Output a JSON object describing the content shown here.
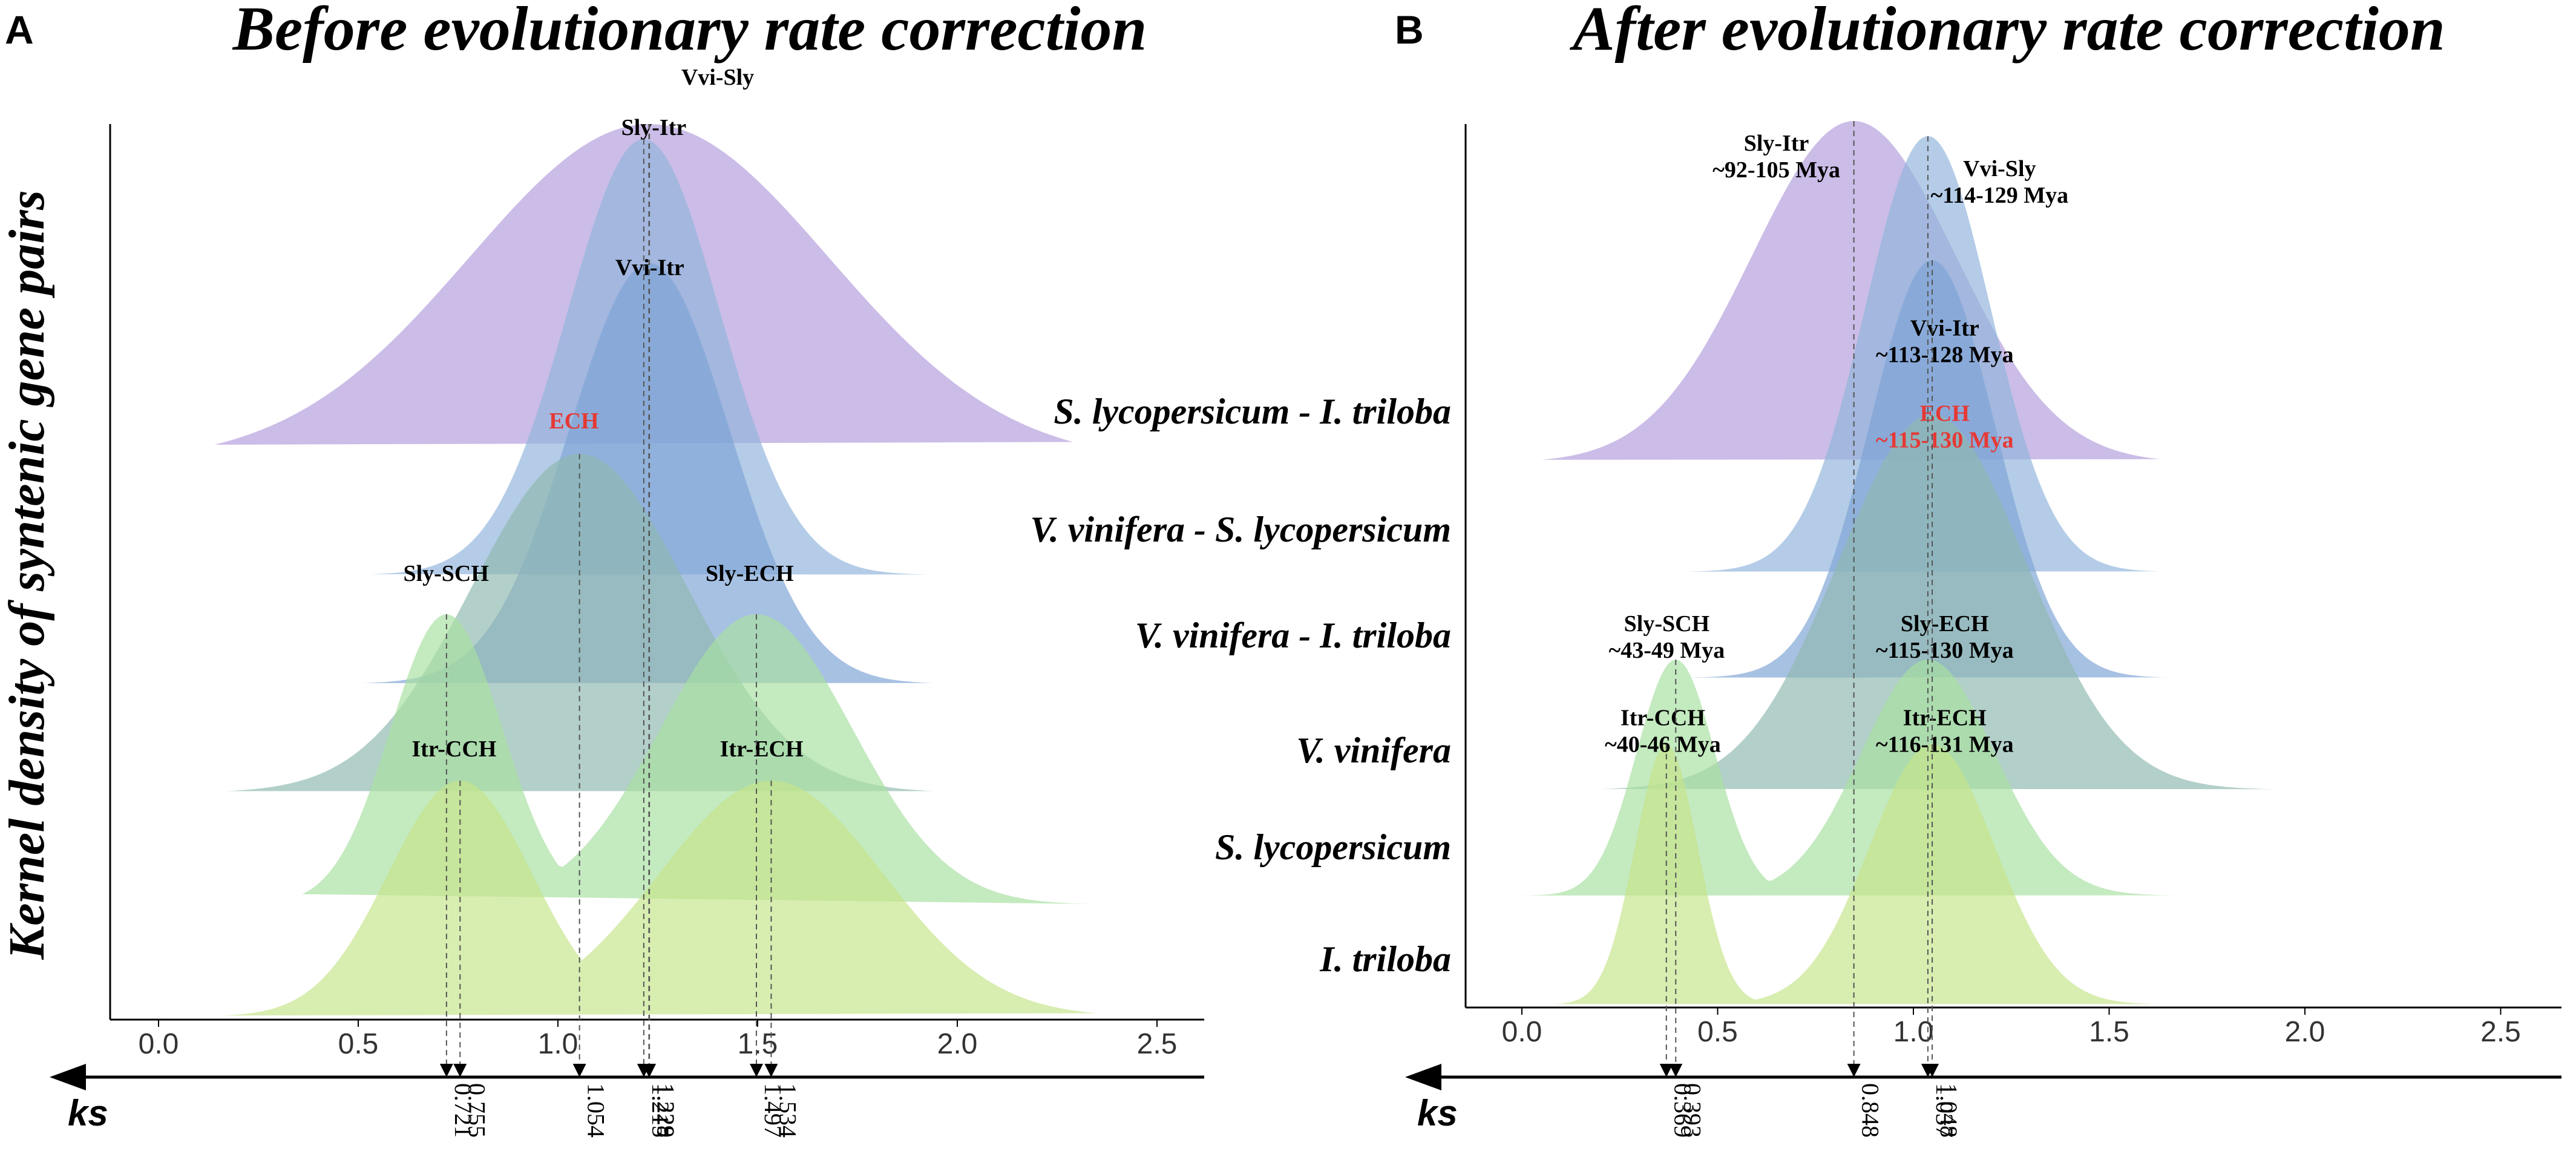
{
  "ylabel": "Kernel density of syntenic gene pairs",
  "axis_caption": "ks",
  "row_labels": [
    "S. lycopersicum - I. triloba",
    "V. vinifera - S. lycopersicum",
    "V. vinifera - I. triloba",
    "V. vinifera",
    "S. lycopersicum",
    "I. triloba"
  ],
  "colors": {
    "purple": "#b39ddb",
    "blue": "#90b4db",
    "blue_dark": "#7ea3d6",
    "teal": "#8fb8b0",
    "green": "#a8e0a0",
    "yellow_green": "#c6e58a",
    "red": "#e53935"
  },
  "chart_data": [
    {
      "type": "area",
      "panel_letter": "A",
      "title": "Before evolutionary rate correction",
      "xlabel": "ks",
      "xlim": [
        -0.12,
        2.62
      ],
      "x_ticks": [
        "0.0",
        "0.5",
        "1.0",
        "1.5",
        "2.0",
        "2.5"
      ],
      "series": [
        {
          "name": "Sly-Itr",
          "row": "S. lycopersicum - I. triloba",
          "peak": 1.228,
          "sd": 0.45,
          "range": [
            0.14,
            2.29
          ],
          "color": "purple",
          "label_x": 1.24,
          "label_level": 0.94
        },
        {
          "name": "Vvi-Sly",
          "row": "V. vinifera - S. lycopersicum",
          "peak": 1.215,
          "sd": 0.19,
          "range": [
            0.53,
            1.93
          ],
          "color": "blue",
          "label_x": 1.4,
          "label_level": 1.12
        },
        {
          "name": "Vvi-Itr",
          "row": "V. vinifera - I. triloba",
          "peak": 1.229,
          "sd": 0.2,
          "range": [
            0.51,
            1.94
          ],
          "color": "blue_dark",
          "label_x": 1.23,
          "label_level": 0.95
        },
        {
          "name": "ECH",
          "row": "V. vinifera",
          "peak": 1.054,
          "sd": 0.27,
          "range": [
            0.17,
            1.94
          ],
          "color": "teal",
          "label_x": 1.04,
          "label_level": 1.06,
          "highlight": true
        },
        {
          "name": "Sly-SCH",
          "row": "S. lycopersicum",
          "peak": 0.721,
          "sd": 0.14,
          "range": [
            0.36,
            2.35
          ],
          "color": "green",
          "label_x": 0.72,
          "label_level": 1.1,
          "secondary_name": "Sly-ECH",
          "secondary_peak": 1.497,
          "secondary_sd": 0.24,
          "secondary_label_x": 1.48
        },
        {
          "name": "Itr-CCH",
          "row": "I. triloba",
          "peak": 0.755,
          "sd": 0.18,
          "range": [
            0.16,
            2.35
          ],
          "color": "yellow_green",
          "label_x": 0.74,
          "label_level": 1.08,
          "secondary_name": "Itr-ECH",
          "secondary_peak": 1.534,
          "secondary_sd": 0.28,
          "secondary_label_x": 1.51
        }
      ],
      "peaks": [
        "0.721",
        "0.755",
        "1.054",
        "1.215",
        "1.228",
        "1.229",
        "1.497",
        "1.534"
      ]
    },
    {
      "type": "area",
      "panel_letter": "B",
      "title": "After evolutionary rate correction",
      "xlabel": "ks",
      "xlim": [
        -0.08,
        2.62
      ],
      "x_ticks": [
        "0.0",
        "0.5",
        "1.0",
        "1.5",
        "2.0",
        "2.5"
      ],
      "series": [
        {
          "name": "Sly-Itr",
          "sublabel": "~92-105 Mya",
          "row": "S. lycopersicum - I. triloba",
          "peak": 0.848,
          "sd": 0.26,
          "range": [
            0.05,
            1.63
          ],
          "color": "purple",
          "label_x": 0.65,
          "label_level": 0.88
        },
        {
          "name": "Vvi-Sly",
          "sublabel": "~114-129 Mya",
          "row": "V. vinifera - S. lycopersicum",
          "peak": 1.037,
          "sd": 0.16,
          "range": [
            0.42,
            1.63
          ],
          "color": "blue",
          "label_x": 1.22,
          "label_level": 0.88
        },
        {
          "name": "Vvi-Itr",
          "sublabel": "~113-128 Mya",
          "row": "V. vinifera - I. triloba",
          "peak": 1.048,
          "sd": 0.16,
          "range": [
            0.42,
            1.65
          ],
          "color": "blue_dark",
          "label_x": 1.08,
          "label_level": 0.78
        },
        {
          "name": "ECH",
          "sublabel": "~115-130 Mya",
          "row": "V. vinifera",
          "peak": 1.048,
          "sd": 0.24,
          "range": [
            0.2,
            1.92
          ],
          "color": "teal",
          "label_x": 1.08,
          "label_level": 0.96,
          "highlight": true
        },
        {
          "name": "Sly-SCH",
          "sublabel": "~43-49 Mya",
          "row": "S. lycopersicum",
          "peak": 0.393,
          "sd": 0.1,
          "range": [
            -0.02,
            1.67
          ],
          "color": "green",
          "label_x": 0.37,
          "label_level": 1.1,
          "secondary_name": "Sly-ECH",
          "secondary_sublabel": "~115-130 Mya",
          "secondary_peak": 1.037,
          "secondary_sd": 0.17,
          "secondary_label_x": 1.08
        },
        {
          "name": "Itr-CCH",
          "sublabel": "~40-46 Mya",
          "row": "I. triloba",
          "peak": 0.369,
          "sd": 0.08,
          "range": [
            0.08,
            1.63
          ],
          "color": "yellow_green",
          "label_x": 0.36,
          "label_level": 1.05,
          "secondary_name": "Itr-ECH",
          "secondary_sublabel": "~116-131 Mya",
          "secondary_peak": 1.048,
          "secondary_sd": 0.16,
          "secondary_label_x": 1.08
        }
      ],
      "peaks": [
        "0.369",
        "0.393",
        "0.848",
        "1.037",
        "1.048"
      ]
    }
  ]
}
